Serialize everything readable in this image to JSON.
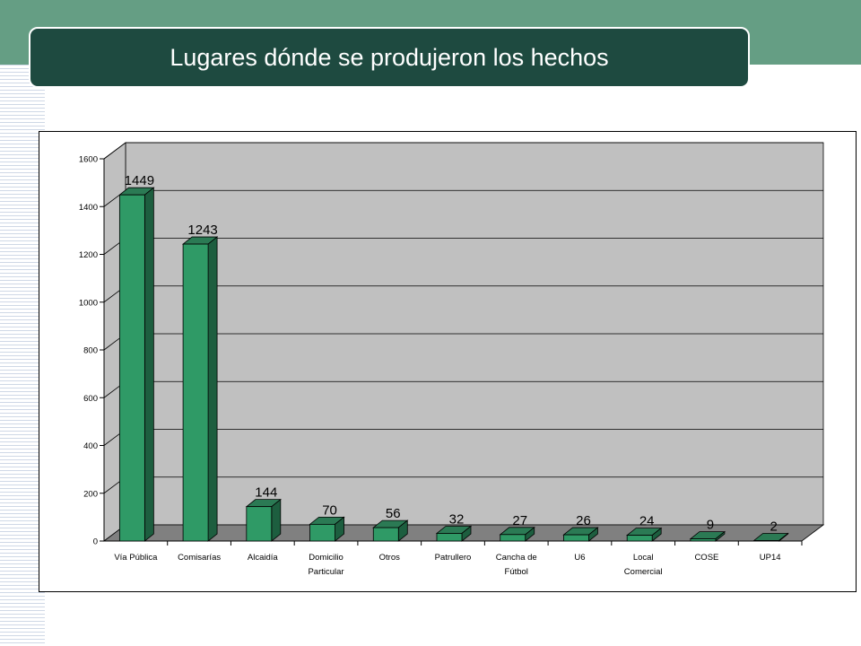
{
  "title": "Lugares dónde se produjeron los hechos",
  "colors": {
    "band": "#659e84",
    "title_bg": "#1e4a40",
    "bar_front": "#2f9a66",
    "bar_side": "#1d5e3f",
    "bar_top": "#2b7a54",
    "plot_bg": "#c0c0c0",
    "floor": "#808080"
  },
  "chart_data": {
    "type": "bar",
    "categories": [
      [
        "Vía Pública"
      ],
      [
        "Comisarías"
      ],
      [
        "Alcaidía"
      ],
      [
        "Domicilio",
        "Particular"
      ],
      [
        "Otros"
      ],
      [
        "Patrullero"
      ],
      [
        "Cancha de",
        "Fútbol"
      ],
      [
        "U6"
      ],
      [
        "Local",
        "Comercial"
      ],
      [
        "COSE"
      ],
      [
        "UP14"
      ]
    ],
    "values": [
      1449,
      1243,
      144,
      70,
      56,
      32,
      27,
      26,
      24,
      9,
      2
    ],
    "yticks": [
      0,
      200,
      400,
      600,
      800,
      1000,
      1200,
      1400,
      1600
    ],
    "ylim": [
      0,
      1600
    ],
    "grid": true,
    "style": "3d-bar"
  }
}
